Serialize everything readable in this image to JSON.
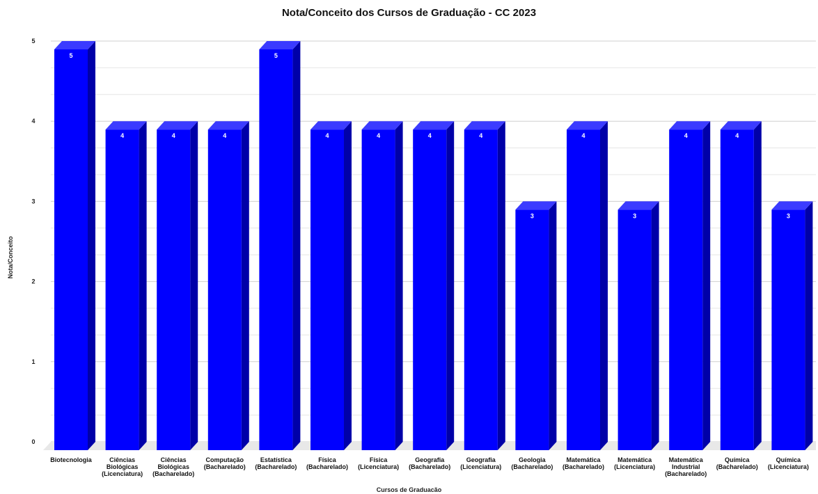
{
  "chart_data": {
    "type": "bar",
    "title": "Nota/Conceito dos Cursos de Graduação - CC 2023",
    "xlabel": "Cursos de Graduacão",
    "ylabel": "Nota/Conceito",
    "ylim": [
      0,
      5
    ],
    "yticks": [
      "0",
      "1",
      "2",
      "3",
      "4",
      "5"
    ],
    "grid": true,
    "bar_color": "#0000ff",
    "categories": [
      [
        "Biotecnologia"
      ],
      [
        "Ciências",
        "Biológicas",
        "(Licenciatura)"
      ],
      [
        "Ciências",
        "Biológicas",
        "(Bacharelado)"
      ],
      [
        "Computação",
        "(Bacharelado)"
      ],
      [
        "Estatística",
        "(Bacharelado)"
      ],
      [
        "Física",
        "(Bacharelado)"
      ],
      [
        "Física",
        "(Licenciatura)"
      ],
      [
        "Geografia",
        "(Bacharelado)"
      ],
      [
        "Geografia",
        "(Licenciatura)"
      ],
      [
        "Geologia",
        "(Bacharelado)"
      ],
      [
        "Matemática",
        "(Bacharelado)"
      ],
      [
        "Matemática",
        "(Licenciatura)"
      ],
      [
        "Matemática",
        "Industrial",
        "(Bacharelado)"
      ],
      [
        "Química",
        "(Bacharelado)"
      ],
      [
        "Química",
        "(Licenciatura)"
      ]
    ],
    "values": [
      5,
      4,
      4,
      4,
      5,
      4,
      4,
      4,
      4,
      3,
      4,
      3,
      4,
      4,
      3
    ],
    "data_labels": [
      "5",
      "4",
      "4",
      "4",
      "5",
      "4",
      "4",
      "4",
      "4",
      "3",
      "4",
      "3",
      "4",
      "4",
      "3"
    ]
  }
}
